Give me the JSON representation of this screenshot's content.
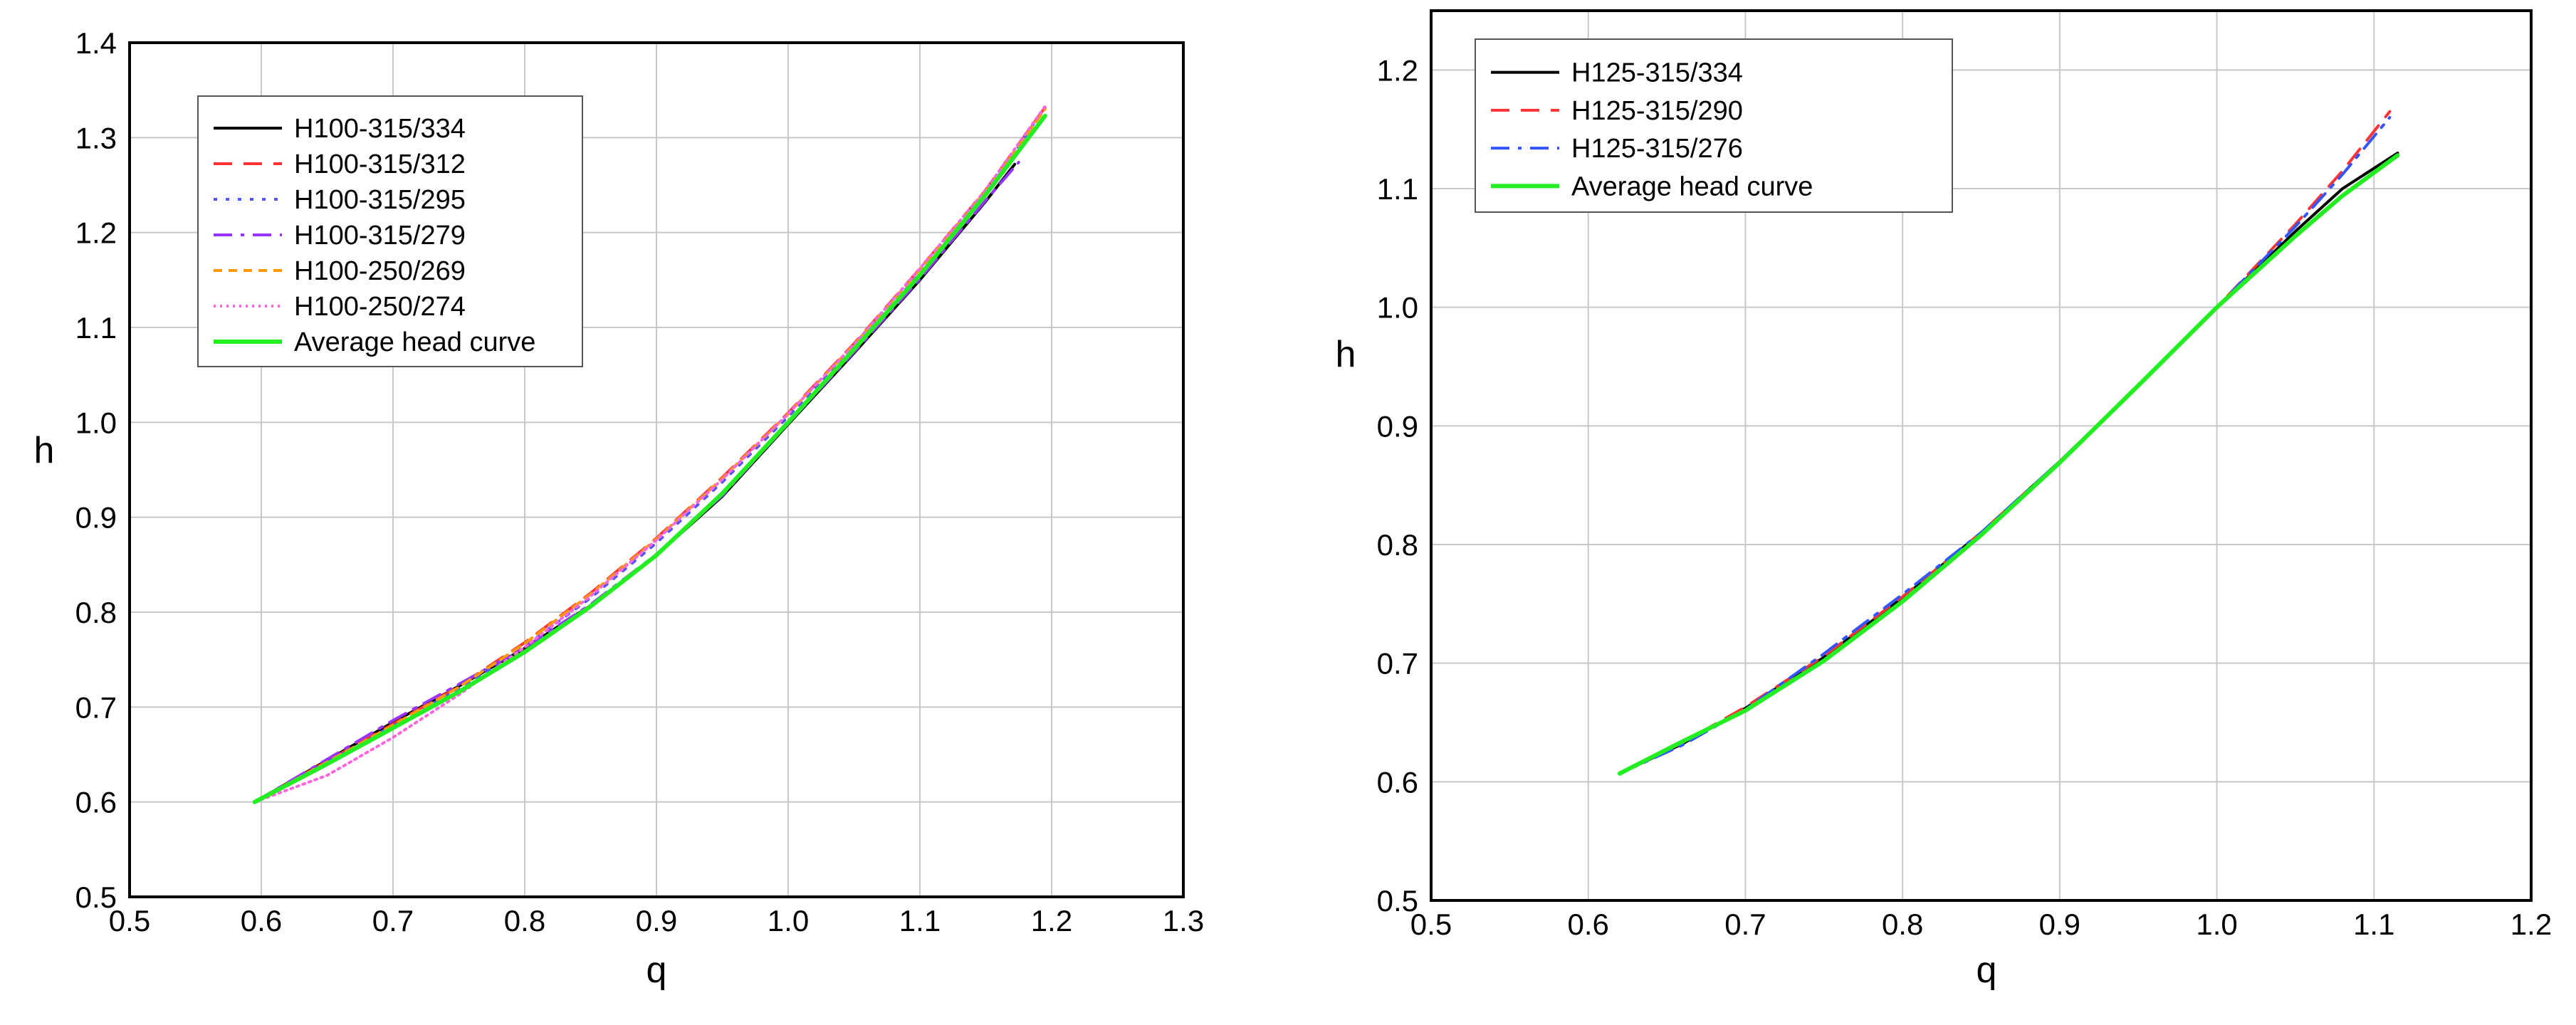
{
  "chart_data": [
    {
      "type": "line",
      "xlabel": "q",
      "ylabel": "h",
      "xlim": [
        0.5,
        1.3
      ],
      "ylim": [
        0.5,
        1.4
      ],
      "x_ticks": [
        "0.5",
        "0.6",
        "0.7",
        "0.8",
        "0.9",
        "1.0",
        "1.1",
        "1.2",
        "1.3"
      ],
      "y_ticks": [
        "0.5",
        "0.6",
        "0.7",
        "0.8",
        "0.9",
        "1.0",
        "1.1",
        "1.2",
        "1.3",
        "1.4"
      ],
      "grid": true,
      "legend_position": "top-left",
      "series": [
        {
          "name": "H100-315/334",
          "color": "#000000",
          "dash": "solid",
          "x": [
            0.595,
            0.65,
            0.7,
            0.75,
            0.8,
            0.85,
            0.9,
            0.95,
            1.0,
            1.05,
            1.1,
            1.15,
            1.172
          ],
          "y": [
            0.6,
            0.644,
            0.684,
            0.722,
            0.762,
            0.807,
            0.86,
            0.922,
            0.998,
            1.073,
            1.15,
            1.233,
            1.272
          ]
        },
        {
          "name": "H100-315/312",
          "color": "#ff3333",
          "dash": "dash",
          "x": [
            0.595,
            0.65,
            0.7,
            0.75,
            0.8,
            0.85,
            0.9,
            0.95,
            1.0,
            1.05,
            1.1,
            1.15,
            1.195
          ],
          "y": [
            0.6,
            0.643,
            0.682,
            0.722,
            0.768,
            0.82,
            0.878,
            0.942,
            1.01,
            1.083,
            1.162,
            1.245,
            1.332
          ]
        },
        {
          "name": "H100-315/295",
          "color": "#5555ff",
          "dash": "dot",
          "x": [
            0.595,
            0.65,
            0.7,
            0.75,
            0.8,
            0.85,
            0.9,
            0.95,
            1.0,
            1.05,
            1.1,
            1.15,
            1.19
          ],
          "y": [
            0.6,
            0.642,
            0.68,
            0.719,
            0.764,
            0.815,
            0.873,
            0.937,
            1.006,
            1.079,
            1.157,
            1.24,
            1.322
          ]
        },
        {
          "name": "H100-315/279",
          "color": "#9933ff",
          "dash": "dashdot",
          "x": [
            0.595,
            0.65,
            0.7,
            0.75,
            0.8,
            0.85,
            0.9,
            0.95,
            1.0,
            1.05,
            1.1,
            1.15,
            1.175
          ],
          "y": [
            0.6,
            0.645,
            0.686,
            0.724,
            0.763,
            0.808,
            0.861,
            0.923,
            0.999,
            1.074,
            1.151,
            1.234,
            1.274
          ]
        },
        {
          "name": "H100-250/269",
          "color": "#ff9900",
          "dash": "shortdash",
          "x": [
            0.595,
            0.65,
            0.7,
            0.75,
            0.8,
            0.85,
            0.9,
            0.95,
            1.0,
            1.05,
            1.1,
            1.15,
            1.195
          ],
          "y": [
            0.6,
            0.642,
            0.681,
            0.721,
            0.767,
            0.819,
            0.877,
            0.941,
            1.009,
            1.082,
            1.161,
            1.244,
            1.33
          ]
        },
        {
          "name": "H100-250/274",
          "color": "#ff66dd",
          "dash": "finedot",
          "x": [
            0.595,
            0.65,
            0.7,
            0.75,
            0.8,
            0.85,
            0.9,
            0.95,
            1.0,
            1.05,
            1.1,
            1.15,
            1.195
          ],
          "y": [
            0.6,
            0.628,
            0.668,
            0.713,
            0.763,
            0.817,
            0.876,
            0.94,
            1.009,
            1.082,
            1.162,
            1.245,
            1.333
          ]
        },
        {
          "name": "Average head curve",
          "color": "#22ee22",
          "dash": "solid",
          "x": [
            0.595,
            0.65,
            0.7,
            0.75,
            0.8,
            0.85,
            0.9,
            0.95,
            1.0,
            1.05,
            1.1,
            1.15,
            1.195
          ],
          "y": [
            0.6,
            0.64,
            0.678,
            0.716,
            0.758,
            0.806,
            0.86,
            0.925,
            1.0,
            1.077,
            1.155,
            1.24,
            1.323
          ]
        }
      ]
    },
    {
      "type": "line",
      "xlabel": "q",
      "ylabel": "h",
      "xlim": [
        0.5,
        1.2
      ],
      "ylim": [
        0.5,
        1.25
      ],
      "x_ticks": [
        "0.5",
        "0.6",
        "0.7",
        "0.8",
        "0.9",
        "1.0",
        "1.1",
        "1.2"
      ],
      "y_ticks": [
        "0.5",
        "0.6",
        "0.7",
        "0.8",
        "0.9",
        "1.0",
        "1.1",
        "1.2"
      ],
      "grid": true,
      "legend_position": "top-left",
      "series": [
        {
          "name": "H125-315/334",
          "color": "#000000",
          "dash": "solid",
          "x": [
            0.62,
            0.66,
            0.7,
            0.75,
            0.8,
            0.85,
            0.9,
            0.95,
            1.0,
            1.05,
            1.08,
            1.115
          ],
          "y": [
            0.607,
            0.632,
            0.662,
            0.705,
            0.755,
            0.81,
            0.87,
            0.934,
            1.0,
            1.064,
            1.1,
            1.13
          ]
        },
        {
          "name": "H125-315/290",
          "color": "#ff3333",
          "dash": "dash",
          "x": [
            0.62,
            0.66,
            0.7,
            0.75,
            0.8,
            0.85,
            0.9,
            0.95,
            1.0,
            1.05,
            1.08,
            1.11
          ],
          "y": [
            0.607,
            0.633,
            0.663,
            0.706,
            0.756,
            0.81,
            0.87,
            0.934,
            1.0,
            1.07,
            1.115,
            1.165
          ]
        },
        {
          "name": "H125-315/276",
          "color": "#3355ff",
          "dash": "dashdot",
          "x": [
            0.62,
            0.66,
            0.7,
            0.75,
            0.8,
            0.85,
            0.9,
            0.95,
            1.0,
            1.05,
            1.08,
            1.11
          ],
          "y": [
            0.607,
            0.631,
            0.661,
            0.708,
            0.758,
            0.81,
            0.87,
            0.934,
            1.0,
            1.068,
            1.112,
            1.16
          ]
        },
        {
          "name": "Average head curve",
          "color": "#22ee22",
          "dash": "solid",
          "x": [
            0.62,
            0.66,
            0.7,
            0.75,
            0.8,
            0.85,
            0.9,
            0.95,
            1.0,
            1.05,
            1.08,
            1.115
          ],
          "y": [
            0.607,
            0.634,
            0.66,
            0.702,
            0.752,
            0.808,
            0.869,
            0.934,
            1.0,
            1.06,
            1.094,
            1.128
          ]
        }
      ]
    }
  ]
}
